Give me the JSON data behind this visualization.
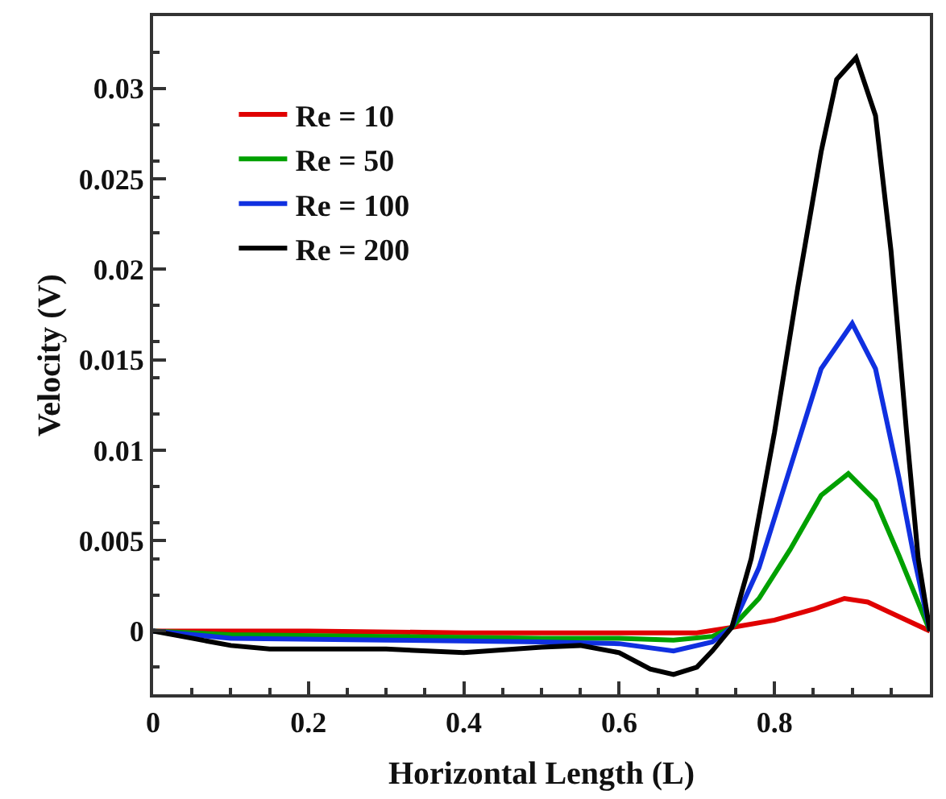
{
  "chart_data": {
    "type": "line",
    "xlabel": "Horizontal Length (L)",
    "ylabel": "Velocity (V)",
    "xlim": [
      0,
      1
    ],
    "xticks": [
      0,
      0.2,
      0.4,
      0.6,
      0.8
    ],
    "ylim": [
      -0.0035,
      0.034
    ],
    "yticks": [
      0,
      0.005,
      0.01,
      0.015,
      0.02,
      0.025,
      0.03
    ],
    "legend": "top left",
    "marker": "none",
    "line_style": "solid",
    "series": [
      {
        "name": "Re = 10",
        "color": "#e00000",
        "x": [
          0,
          0.2,
          0.4,
          0.6,
          0.7,
          0.745,
          0.8,
          0.85,
          0.89,
          0.92,
          0.95,
          1.0
        ],
        "values": [
          0,
          0,
          -0.0001,
          -0.0001,
          -0.0001,
          0.0002,
          0.0006,
          0.0012,
          0.0018,
          0.0016,
          0.001,
          0
        ]
      },
      {
        "name": "Re = 50",
        "color": "#00a000",
        "x": [
          0,
          0.1,
          0.3,
          0.5,
          0.6,
          0.67,
          0.72,
          0.745,
          0.78,
          0.82,
          0.86,
          0.895,
          0.93,
          0.96,
          1.0
        ],
        "values": [
          0,
          -0.0002,
          -0.0003,
          -0.0004,
          -0.0004,
          -0.0005,
          -0.0003,
          0.0002,
          0.0018,
          0.0045,
          0.0075,
          0.0087,
          0.0072,
          0.0042,
          0
        ]
      },
      {
        "name": "Re = 100",
        "color": "#1030e0",
        "x": [
          0,
          0.1,
          0.3,
          0.5,
          0.6,
          0.67,
          0.72,
          0.745,
          0.78,
          0.82,
          0.86,
          0.9,
          0.93,
          0.96,
          0.98,
          1.0
        ],
        "values": [
          0,
          -0.0004,
          -0.0005,
          -0.0006,
          -0.0007,
          -0.0011,
          -0.0006,
          0.0002,
          0.0035,
          0.009,
          0.0145,
          0.017,
          0.0145,
          0.0085,
          0.004,
          0
        ]
      },
      {
        "name": "Re = 200",
        "color": "#000000",
        "x": [
          0,
          0.05,
          0.1,
          0.15,
          0.3,
          0.4,
          0.5,
          0.55,
          0.6,
          0.64,
          0.67,
          0.7,
          0.72,
          0.745,
          0.77,
          0.8,
          0.83,
          0.86,
          0.88,
          0.905,
          0.93,
          0.95,
          0.97,
          0.985,
          1.0
        ],
        "values": [
          0,
          -0.0004,
          -0.0008,
          -0.001,
          -0.001,
          -0.0012,
          -0.0009,
          -0.0008,
          -0.0012,
          -0.0021,
          -0.0024,
          -0.002,
          -0.0011,
          0.0002,
          0.004,
          0.011,
          0.019,
          0.0265,
          0.0305,
          0.0317,
          0.0285,
          0.021,
          0.011,
          0.004,
          0
        ]
      }
    ]
  }
}
